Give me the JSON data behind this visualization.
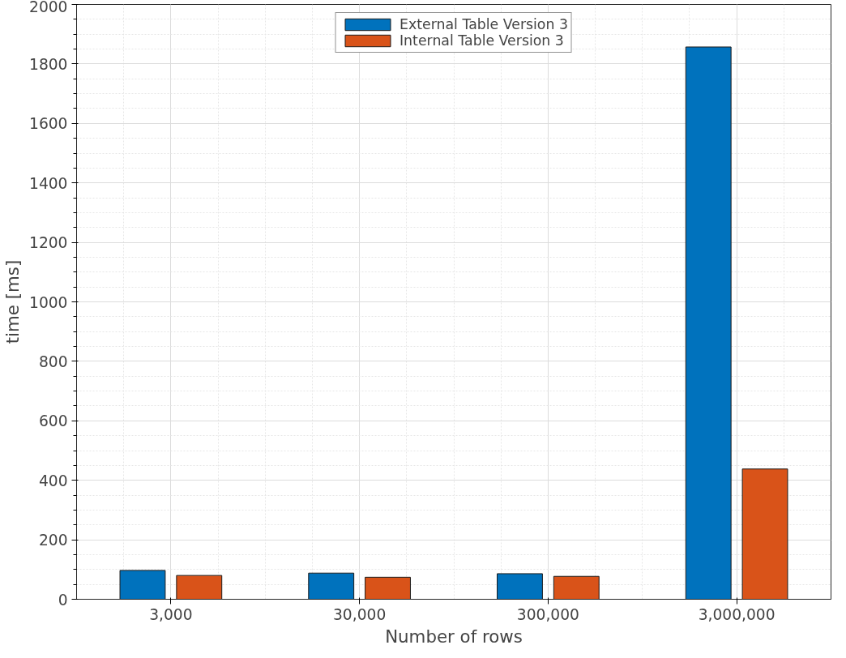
{
  "chart_data": {
    "type": "bar",
    "xlabel": "Number of rows",
    "ylabel": "time [ms]",
    "categories": [
      "3,000",
      "30,000",
      "300,000",
      "3,000,000"
    ],
    "series": [
      {
        "name": "External Table Version 3",
        "color": "#0072bd",
        "values": [
          97,
          88,
          86,
          1857
        ]
      },
      {
        "name": "Internal Table Version 3",
        "color": "#d95319",
        "values": [
          80,
          74,
          77,
          438
        ]
      }
    ],
    "ylim": [
      0,
      2000
    ],
    "yticks": [
      0,
      200,
      400,
      600,
      800,
      1000,
      1200,
      1400,
      1600,
      1800,
      2000
    ],
    "grid": true,
    "legend": "top"
  }
}
